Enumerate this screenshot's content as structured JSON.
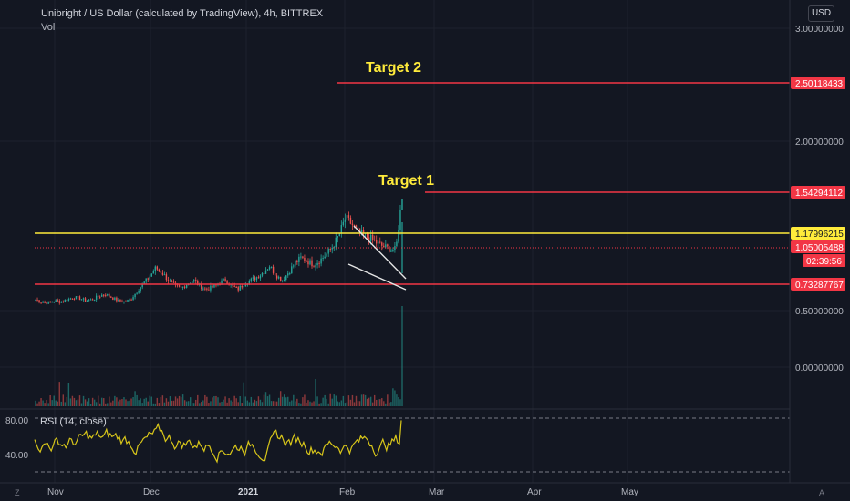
{
  "header": {
    "title": "Unibright / US Dollar (calculated by TradingView), 4h, BITTREX",
    "volume_label": "Vol",
    "currency_button": "USD"
  },
  "annotations": {
    "target2_label": "Target 2",
    "target1_label": "Target 1"
  },
  "price_axis": {
    "ticks": [
      "3.00000000",
      "2.00000000",
      "0.50000000",
      "0.00000000"
    ],
    "price_tags": [
      {
        "label": "2.50118433",
        "color": "#f23645"
      },
      {
        "label": "1.54294112",
        "color": "#f23645"
      },
      {
        "label": "1.17996215",
        "color": "#ffeb3b"
      },
      {
        "label": "1.05005488",
        "color": "#f23645"
      },
      {
        "label": "02:39:56",
        "color": "#f23645"
      },
      {
        "label": "0.73287767",
        "color": "#f23645"
      }
    ]
  },
  "rsi": {
    "label": "RSI (14, close)",
    "ticks": [
      "80.00",
      "40.00"
    ]
  },
  "time_axis": {
    "labels": [
      "Nov",
      "Dec",
      "2021",
      "Feb",
      "Mar",
      "Apr",
      "May"
    ]
  },
  "corner_icons": {
    "left": "Z",
    "right": "A"
  },
  "colors": {
    "background": "#131722",
    "up": "#26a69a",
    "down": "#ef5350",
    "target_line": "#f23645",
    "resistance_line": "#ffeb3b",
    "rsi_line": "#d8c61a",
    "annotation_text": "#ffeb3b"
  },
  "chart_data": {
    "type": "line",
    "series": [
      {
        "values": [
          0.38,
          0.36,
          0.35,
          0.37,
          0.36,
          0.38,
          0.4,
          0.39,
          0.37,
          0.38,
          0.41,
          0.43,
          0.4,
          0.37,
          0.36,
          0.38,
          0.45,
          0.52,
          0.58,
          0.66,
          0.62,
          0.55,
          0.5,
          0.48,
          0.52,
          0.55,
          0.5,
          0.47,
          0.49,
          0.52,
          0.56,
          0.5,
          0.47,
          0.52,
          0.55,
          0.58,
          0.62,
          0.68,
          0.6,
          0.55,
          0.62,
          0.7,
          0.75,
          0.72,
          0.69,
          0.73,
          0.78,
          0.85,
          0.95,
          1.1,
          1.05,
          0.98,
          0.95,
          0.92,
          0.88,
          0.85,
          0.83,
          0.82,
          1.3
        ]
      }
    ],
    "horizontal_levels": [
      2.50118433,
      1.54294112,
      1.17996215,
      1.05005488,
      0.73287767
    ],
    "ylim": [
      -0.2,
      3.0
    ],
    "x_labels": [
      "Nov",
      "Dec",
      "2021",
      "Feb",
      "Mar",
      "Apr",
      "May"
    ]
  }
}
